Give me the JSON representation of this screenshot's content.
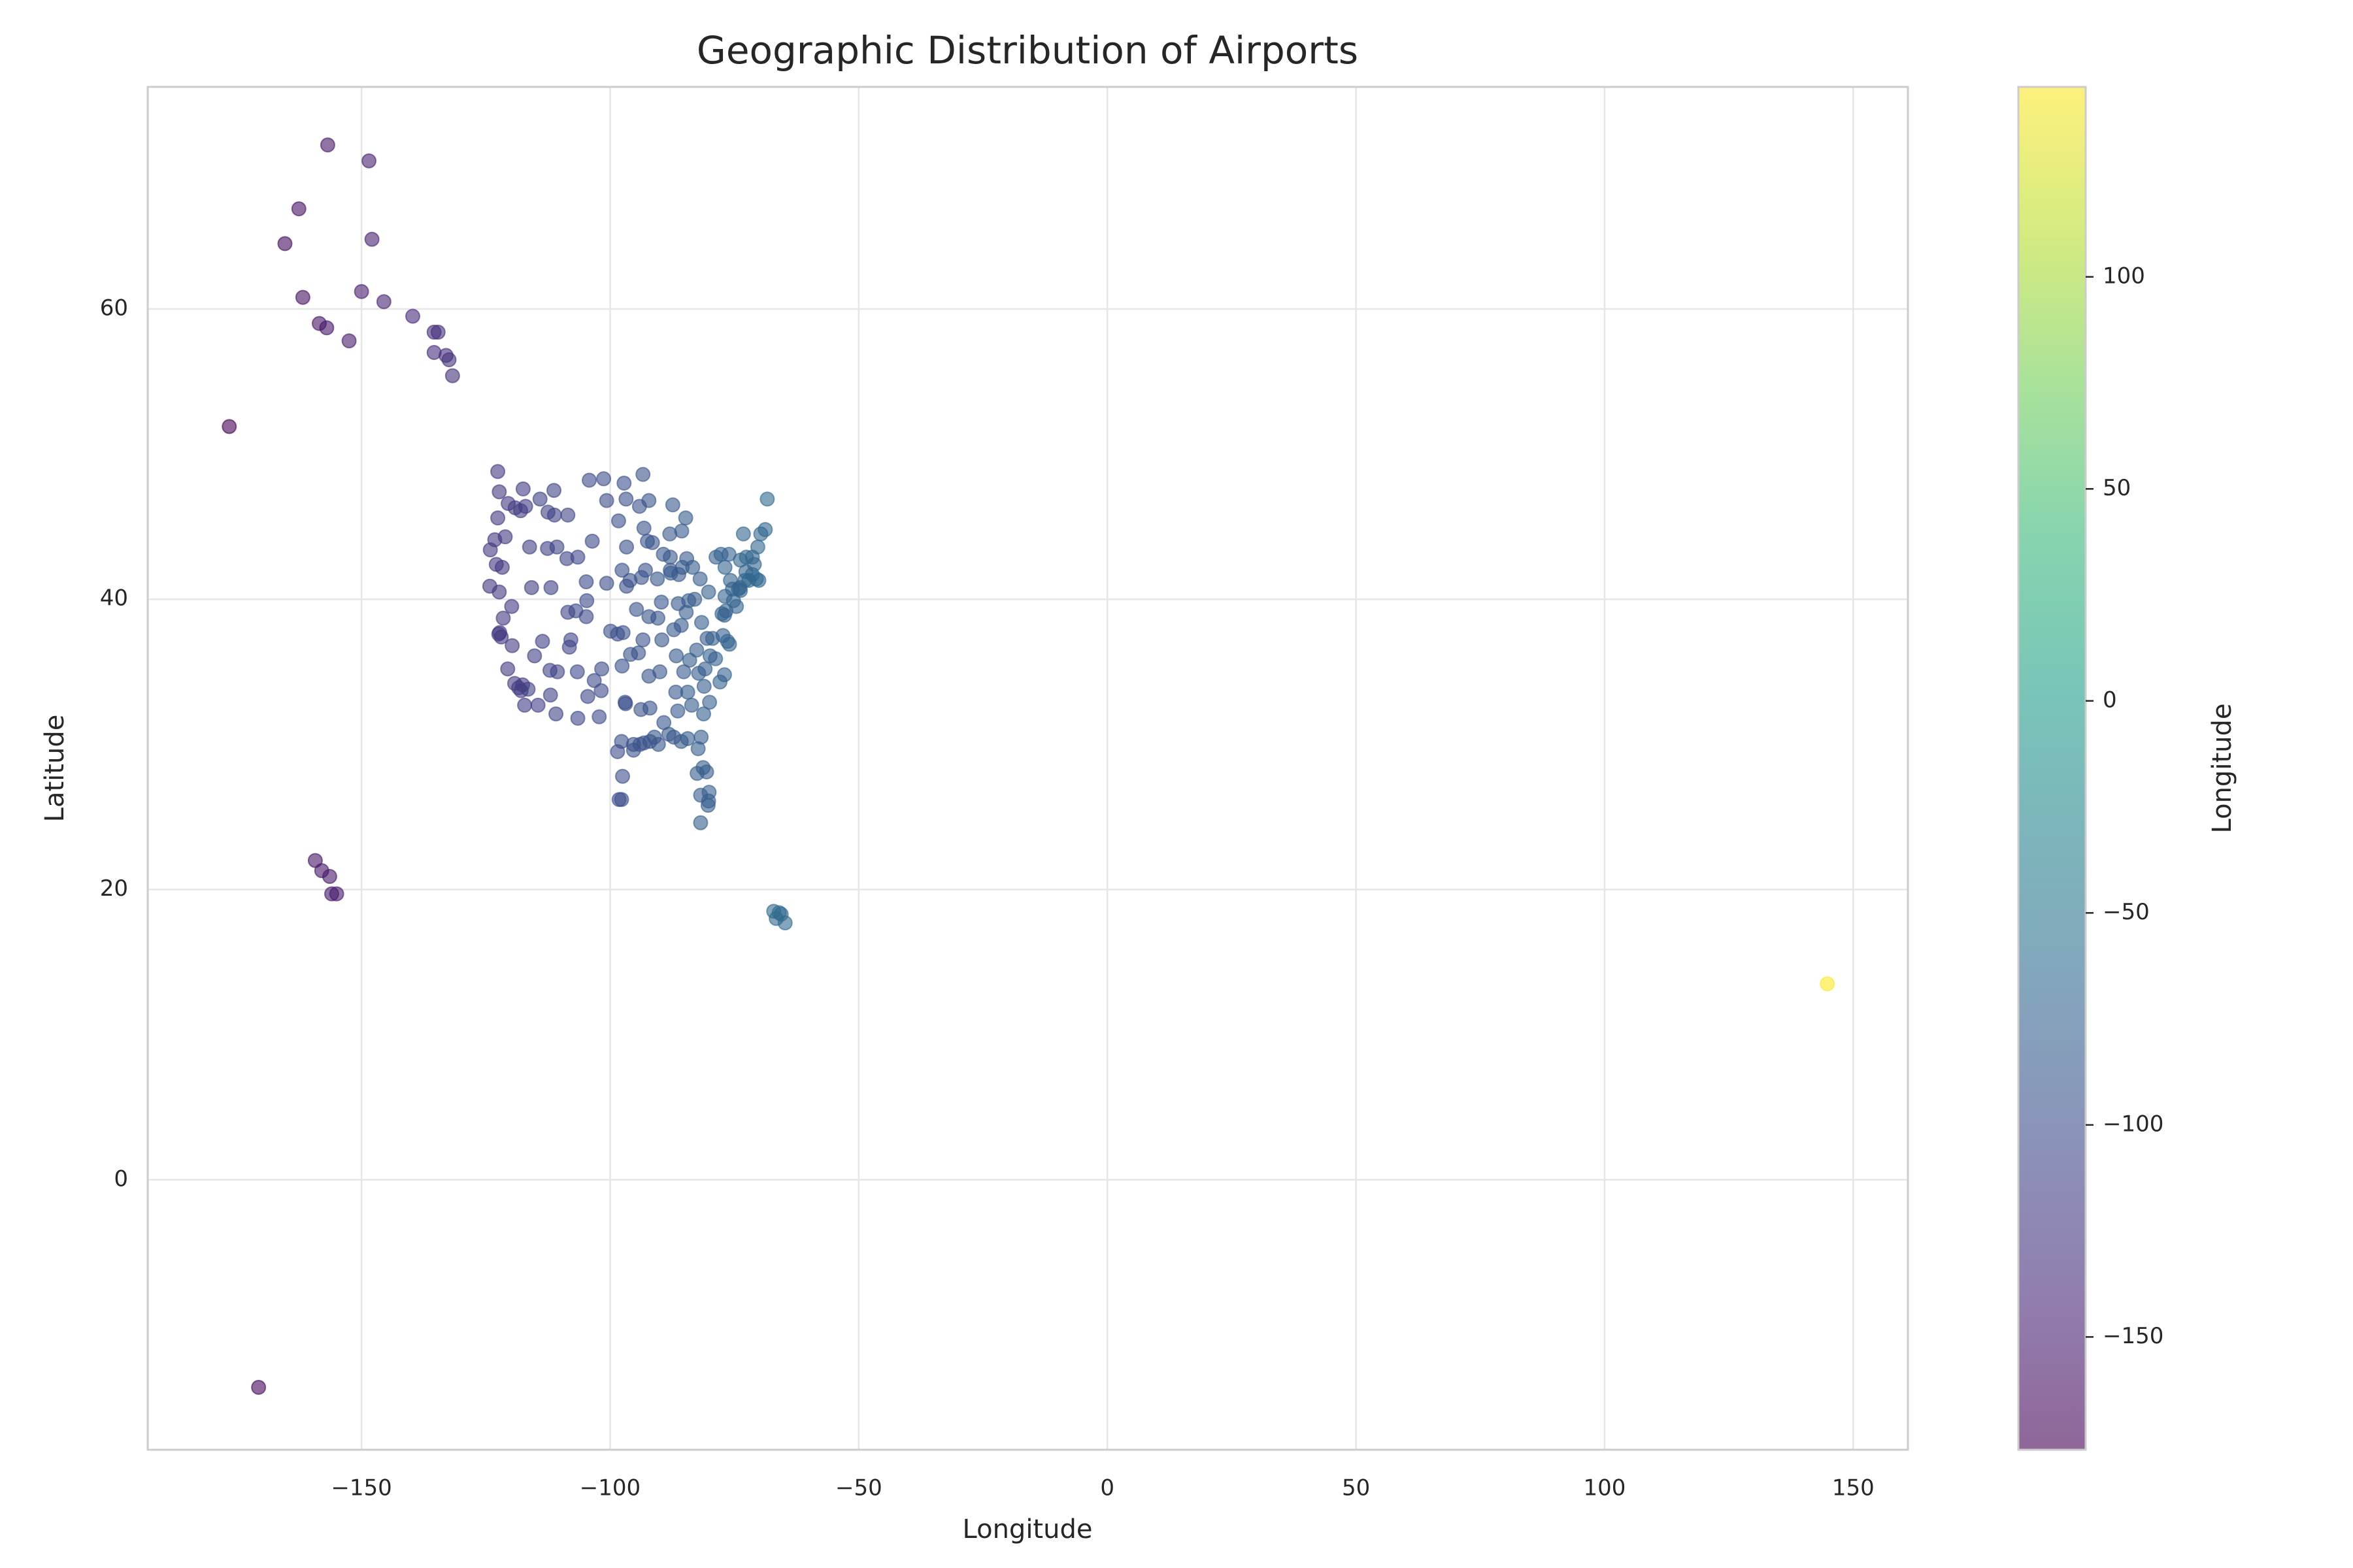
{
  "chart_data": {
    "type": "scatter",
    "title": "Geographic Distribution of Airports",
    "x_label": "Longitude",
    "y_label": "Latitude",
    "xlim": [
      -193,
      161
    ],
    "ylim": [
      -18.6,
      75.3
    ],
    "xticks": [
      {
        "value": -150,
        "label": "−150"
      },
      {
        "value": -100,
        "label": "−100"
      },
      {
        "value": -50,
        "label": "−50"
      },
      0,
      50,
      100,
      150
    ],
    "yticks": [
      0,
      20,
      40,
      60
    ],
    "grid": true,
    "alpha": 0.6,
    "colormap": [
      "#440154",
      "#482878",
      "#3e4989",
      "#31688e",
      "#26828e",
      "#1f9e89",
      "#35b779",
      "#6ece58",
      "#b5de2b",
      "#fde725"
    ],
    "colorbar": {
      "label": "Longitude",
      "lim": [
        -176.6,
        144.8
      ],
      "ticks": [
        {
          "value": -150,
          "label": "−150"
        },
        {
          "value": -100,
          "label": "−100"
        },
        {
          "value": -50,
          "label": "−50"
        },
        0,
        50,
        100
      ]
    },
    "series": [
      {
        "x": [
          -156.8,
          -148.5,
          -162.6,
          -165.4,
          -147.9,
          -161.8,
          -150.0,
          -145.5,
          -158.5,
          -157.0,
          -152.5,
          -139.7,
          -135.4,
          -134.6,
          -135.4,
          -133.0,
          -132.4,
          -131.7,
          -176.6,
          -159.3,
          -158.0,
          -156.4,
          -156.0,
          -155.0,
          -170.7,
          -66.0,
          -67.1,
          -65.6,
          -64.8,
          -66.6,
          144.8,
          -122.3,
          -122.6,
          -122.4,
          -122.2,
          -121.9,
          -121.5,
          -118.4,
          -117.2,
          -117.9,
          -117.6,
          -116.5,
          -119.7,
          -119.2,
          -119.8,
          -115.2,
          -112.0,
          -110.9,
          -111.9,
          -116.2,
          -117.5,
          -124.2,
          -122.9,
          -123.2,
          -121.1,
          -120.6,
          -122.3,
          -124.1,
          -122.6,
          -118.0,
          -119.1,
          -114.1,
          -111.2,
          -112.5,
          -108.5,
          -106.6,
          -104.7,
          -104.8,
          -106.9,
          -107.9,
          -108.5,
          -104.8,
          -106.5,
          -110.7,
          -113.6,
          -114.5,
          -101.7,
          -101.8,
          -102.2,
          -97.0,
          -96.9,
          -95.3,
          -95.3,
          -97.7,
          -98.5,
          -97.5,
          -97.7,
          -98.2,
          -94.0,
          -93.2,
          -91.1,
          -90.3,
          -92.0,
          -92.0,
          -93.8,
          -97.6,
          -95.9,
          -94.3,
          -92.2,
          -90.0,
          -86.7,
          -84.0,
          -85.2,
          -86.8,
          -88.2,
          -84.4,
          -81.2,
          -80.0,
          -81.7,
          -81.3,
          -82.5,
          -80.3,
          -80.2,
          -81.8,
          -81.8,
          -80.1,
          -80.9,
          -78.8,
          -79.9,
          -77.0,
          -77.5,
          -76.7,
          -75.2,
          -74.2,
          -73.8,
          -73.9,
          -71.0,
          -71.4,
          -72.7,
          -73.8,
          -76.1,
          -77.7,
          -78.7,
          -80.2,
          -81.9,
          -83.4,
          -84.6,
          -85.5,
          -86.3,
          -84.7,
          -85.7,
          -83.0,
          -84.2,
          -87.9,
          -87.8,
          -89.7,
          -90.4,
          -94.7,
          -93.7,
          -96.0,
          -96.7,
          -93.2,
          -92.5,
          -96.7,
          -100.7,
          -96.8,
          -101.3,
          -97.2,
          -88.0,
          -87.9,
          -89.3,
          -91.5,
          -92.2,
          -85.6,
          -84.8,
          -87.4,
          -80.5,
          -77.3,
          -76.0,
          -79.4,
          -81.6,
          -82.6,
          -68.8,
          -70.3,
          -71.4,
          -72.6,
          -73.2,
          -70.1,
          -70.6,
          -72.1,
          -75.4,
          -76.9,
          -98.5,
          -97.4,
          -99.9,
          -100.7,
          -103.6,
          -106.5,
          -108.7,
          -104.5,
          -103.2,
          -108.2,
          -110.6,
          -112.1,
          -117.0,
          -120.5,
          -121.7,
          -115.8,
          -112.6,
          -111.3,
          -104.2,
          -98.3,
          -97.6,
          -92.9,
          -90.5,
          -87.2,
          -89.6,
          -93.4,
          -92.2,
          -89.2,
          -86.4,
          -83.6,
          -81.1,
          -82.2,
          -84.4,
          -85.7,
          -87.2,
          -80.6,
          -82.3,
          -77.0,
          -77.9,
          -76.4,
          -74.6,
          -72.9,
          -75.8,
          -76.9,
          -69.7,
          -68.4,
          -86.2,
          -94.1,
          -93.4
        ],
        "values": [
          71.3,
          70.2,
          66.9,
          64.5,
          64.8,
          60.8,
          61.2,
          60.5,
          59.0,
          58.7,
          57.8,
          59.5,
          58.4,
          58.4,
          57.0,
          56.8,
          56.5,
          55.4,
          51.9,
          22.0,
          21.3,
          20.9,
          19.7,
          19.7,
          -14.3,
          18.4,
          18.5,
          18.3,
          17.7,
          18.0,
          13.5,
          47.4,
          45.6,
          37.6,
          37.7,
          37.4,
          38.7,
          33.9,
          32.7,
          33.7,
          34.1,
          33.8,
          36.8,
          34.2,
          39.5,
          36.1,
          33.4,
          32.1,
          40.8,
          43.6,
          47.6,
          40.9,
          42.4,
          44.1,
          44.3,
          35.2,
          40.5,
          43.4,
          48.8,
          46.1,
          46.3,
          46.9,
          45.8,
          46.0,
          45.8,
          35.0,
          39.9,
          38.8,
          39.2,
          37.2,
          39.1,
          41.2,
          31.8,
          43.6,
          37.1,
          32.7,
          35.2,
          33.7,
          31.9,
          32.9,
          32.8,
          30.0,
          29.6,
          30.2,
          29.5,
          27.8,
          26.2,
          26.2,
          30.0,
          30.1,
          30.5,
          30.0,
          30.2,
          32.5,
          32.4,
          35.4,
          36.2,
          36.3,
          34.7,
          35.0,
          36.1,
          35.8,
          35.0,
          33.6,
          30.7,
          33.6,
          32.1,
          32.9,
          30.5,
          28.4,
          28.0,
          25.8,
          26.1,
          24.6,
          26.5,
          26.7,
          35.2,
          35.9,
          36.1,
          38.9,
          39.0,
          39.2,
          39.9,
          40.7,
          40.6,
          40.8,
          42.4,
          41.7,
          41.9,
          42.7,
          43.1,
          43.1,
          42.9,
          40.5,
          41.4,
          42.2,
          42.8,
          42.2,
          39.7,
          39.1,
          38.2,
          40.0,
          39.9,
          42.0,
          41.8,
          39.8,
          38.7,
          39.3,
          41.5,
          41.3,
          40.9,
          44.9,
          44.0,
          43.6,
          46.8,
          46.9,
          48.3,
          48.0,
          44.5,
          42.9,
          43.1,
          43.9,
          46.8,
          44.7,
          45.6,
          46.5,
          37.3,
          37.5,
          36.9,
          37.3,
          38.4,
          36.5,
          44.8,
          43.6,
          42.9,
          42.9,
          44.5,
          41.3,
          41.4,
          41.3,
          40.7,
          40.2,
          37.6,
          37.7,
          37.8,
          41.1,
          44.0,
          42.9,
          42.8,
          33.3,
          34.4,
          36.7,
          35.0,
          35.1,
          46.4,
          46.6,
          42.2,
          40.8,
          43.5,
          47.5,
          48.2,
          45.4,
          42.0,
          42.0,
          41.4,
          37.9,
          37.2,
          37.2,
          38.8,
          31.5,
          32.3,
          32.7,
          34.0,
          34.9,
          30.4,
          30.2,
          30.5,
          28.1,
          29.7,
          34.8,
          34.3,
          37.1,
          39.5,
          41.3,
          41.3,
          42.2,
          44.5,
          46.9,
          41.7,
          46.4,
          48.6
        ]
      }
    ]
  }
}
